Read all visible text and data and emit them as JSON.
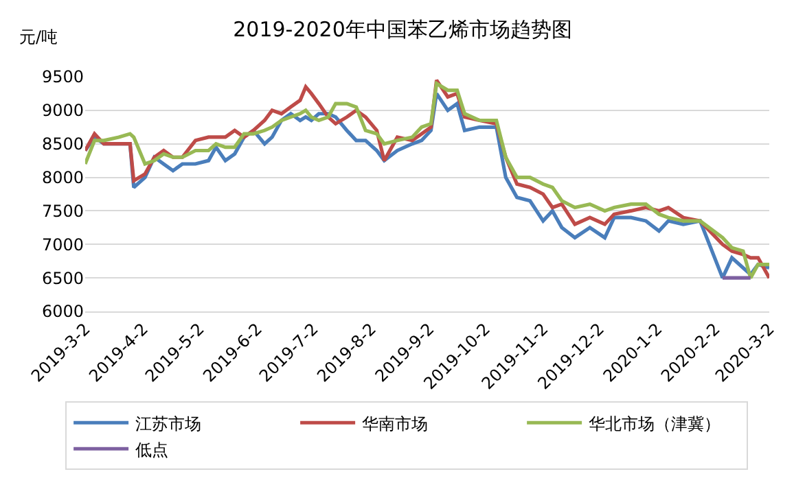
{
  "chart_data": {
    "type": "line",
    "title": "2019-2020年中国苯乙烯市场趋势图",
    "ylabel": "元/吨",
    "x": [
      "2019-03-02",
      "2019-03-07",
      "2019-03-12",
      "2019-03-20",
      "2019-03-26",
      "2019-03-28",
      "2019-04-03",
      "2019-04-08",
      "2019-04-13",
      "2019-04-18",
      "2019-04-23",
      "2019-04-30",
      "2019-05-07",
      "2019-05-11",
      "2019-05-16",
      "2019-05-21",
      "2019-05-26",
      "2019-05-31",
      "2019-06-06",
      "2019-06-10",
      "2019-06-15",
      "2019-06-20",
      "2019-06-25",
      "2019-06-28",
      "2019-07-01",
      "2019-07-05",
      "2019-07-10",
      "2019-07-14",
      "2019-07-20",
      "2019-07-25",
      "2019-07-30",
      "2019-08-05",
      "2019-08-09",
      "2019-08-16",
      "2019-08-24",
      "2019-08-29",
      "2019-09-03",
      "2019-09-06",
      "2019-09-12",
      "2019-09-17",
      "2019-09-21",
      "2019-09-29",
      "2019-10-08",
      "2019-10-13",
      "2019-10-19",
      "2019-10-26",
      "2019-11-02",
      "2019-11-07",
      "2019-11-12",
      "2019-11-19",
      "2019-11-27",
      "2019-12-05",
      "2019-12-10",
      "2019-12-19",
      "2019-12-27",
      "2020-01-03",
      "2020-01-08",
      "2020-01-16",
      "2020-01-25",
      "2020-02-06",
      "2020-02-11",
      "2020-02-17",
      "2020-02-21",
      "2020-02-25",
      "2020-03-02"
    ],
    "series": [
      {
        "name": "江苏市场",
        "color": "#4a7ebb",
        "values": [
          8400,
          8600,
          8500,
          8500,
          8500,
          7850,
          8000,
          8300,
          8200,
          8100,
          8200,
          8200,
          8250,
          8450,
          8250,
          8350,
          8600,
          8700,
          8500,
          8600,
          8850,
          8950,
          8850,
          8900,
          8850,
          8950,
          8950,
          8900,
          8700,
          8550,
          8550,
          8400,
          8250,
          8400,
          8500,
          8550,
          8700,
          9250,
          9000,
          9100,
          8700,
          8750,
          8750,
          8000,
          7700,
          7650,
          7350,
          7500,
          7250,
          7100,
          7250,
          7100,
          7400,
          7400,
          7350,
          7200,
          7350,
          7300,
          7350,
          6500,
          6800,
          6650,
          6550,
          6700,
          6650
        ]
      },
      {
        "name": "华南市场",
        "color": "#be4b48",
        "values": [
          8400,
          8650,
          8500,
          8500,
          8500,
          7950,
          8050,
          8300,
          8400,
          8300,
          8300,
          8550,
          8600,
          8600,
          8600,
          8700,
          8600,
          8700,
          8850,
          9000,
          8950,
          9050,
          9150,
          9350,
          9250,
          9100,
          8900,
          8800,
          8900,
          9000,
          8900,
          8700,
          8250,
          8600,
          8550,
          8650,
          8750,
          9450,
          9200,
          9250,
          8900,
          8850,
          8800,
          8300,
          7900,
          7850,
          7750,
          7550,
          7600,
          7300,
          7400,
          7300,
          7450,
          7500,
          7550,
          7500,
          7550,
          7400,
          7350,
          7000,
          6900,
          6850,
          6800,
          6800,
          6500
        ]
      },
      {
        "name": "华北市场（津冀）",
        "color": "#98b954",
        "values": [
          8200,
          8550,
          8550,
          8600,
          8650,
          8600,
          8200,
          8250,
          8350,
          8300,
          8300,
          8400,
          8400,
          8500,
          8450,
          8450,
          8650,
          8650,
          8700,
          8750,
          8850,
          8900,
          8950,
          9000,
          8900,
          8850,
          8900,
          9100,
          9100,
          9050,
          8700,
          8650,
          8500,
          8550,
          8600,
          8750,
          8800,
          9400,
          9300,
          9300,
          8950,
          8850,
          8850,
          8300,
          8000,
          8000,
          7900,
          7850,
          7650,
          7550,
          7600,
          7500,
          7550,
          7600,
          7600,
          7450,
          7400,
          7350,
          7350,
          7100,
          6950,
          6900,
          6500,
          6700,
          6700
        ]
      },
      {
        "name": "低点",
        "color": "#7d60a0",
        "x": [
          "2020-02-06",
          "2020-02-21"
        ],
        "values": [
          6500,
          6500
        ]
      }
    ],
    "xlim": [
      "2019-03-02",
      "2020-03-02"
    ],
    "xticks": [
      {
        "value": "2019-03-02",
        "label": "2019-3-2"
      },
      {
        "value": "2019-04-02",
        "label": "2019-4-2"
      },
      {
        "value": "2019-05-02",
        "label": "2019-5-2"
      },
      {
        "value": "2019-06-02",
        "label": "2019-6-2"
      },
      {
        "value": "2019-07-02",
        "label": "2019-7-2"
      },
      {
        "value": "2019-08-02",
        "label": "2019-8-2"
      },
      {
        "value": "2019-09-02",
        "label": "2019-9-2"
      },
      {
        "value": "2019-10-02",
        "label": "2019-10-2"
      },
      {
        "value": "2019-11-02",
        "label": "2019-11-2"
      },
      {
        "value": "2019-12-02",
        "label": "2019-12-2"
      },
      {
        "value": "2020-01-02",
        "label": "2020-1-2"
      },
      {
        "value": "2020-02-02",
        "label": "2020-2-2"
      },
      {
        "value": "2020-03-02",
        "label": "2020-3-2"
      }
    ],
    "ylim": [
      6000,
      9500
    ],
    "yticks": [
      6000,
      6500,
      7000,
      7500,
      8000,
      8500,
      9000,
      9500
    ],
    "grid": "y",
    "legend": "bottom",
    "marker": "none",
    "line_style": "solid"
  }
}
